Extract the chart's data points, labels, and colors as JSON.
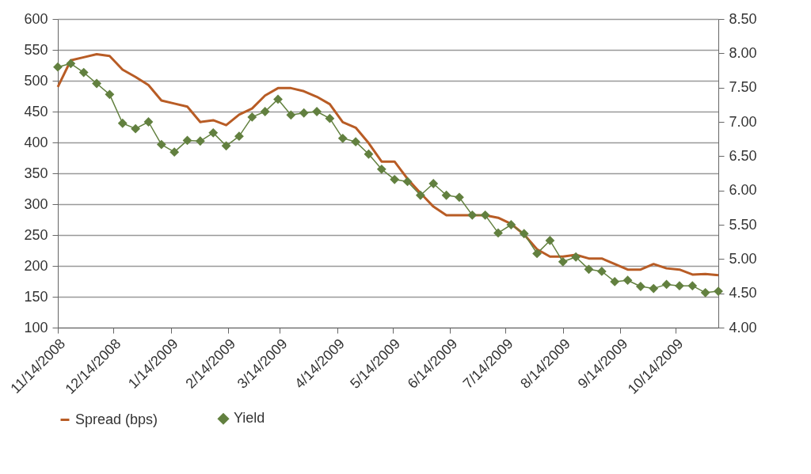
{
  "chart_data": {
    "type": "line",
    "x": [
      "2008-11-14",
      "2008-11-21",
      "2008-11-28",
      "2008-12-05",
      "2008-12-12",
      "2008-12-19",
      "2008-12-26",
      "2009-01-02",
      "2009-01-09",
      "2009-01-16",
      "2009-01-23",
      "2009-01-30",
      "2009-02-06",
      "2009-02-13",
      "2009-02-20",
      "2009-02-27",
      "2009-03-06",
      "2009-03-13",
      "2009-03-20",
      "2009-03-27",
      "2009-04-03",
      "2009-04-10",
      "2009-04-17",
      "2009-04-24",
      "2009-05-01",
      "2009-05-08",
      "2009-05-15",
      "2009-05-22",
      "2009-05-29",
      "2009-06-05",
      "2009-06-12",
      "2009-06-19",
      "2009-06-26",
      "2009-07-03",
      "2009-07-10",
      "2009-07-17",
      "2009-07-24",
      "2009-07-31",
      "2009-08-07",
      "2009-08-14",
      "2009-08-21",
      "2009-08-28",
      "2009-09-04",
      "2009-09-11",
      "2009-09-18",
      "2009-09-25",
      "2009-10-02",
      "2009-10-09",
      "2009-10-16",
      "2009-10-23",
      "2009-10-30",
      "2009-11-06"
    ],
    "series": [
      {
        "name": "Spread (bps)",
        "color": "#b85c25",
        "marker": "none",
        "values": [
          490,
          533,
          538,
          543,
          540,
          518,
          506,
          493,
          468,
          463,
          458,
          433,
          436,
          428,
          445,
          455,
          476,
          488,
          488,
          483,
          474,
          462,
          433,
          424,
          399,
          369,
          369,
          341,
          318,
          296,
          282,
          282,
          282,
          282,
          278,
          268,
          251,
          227,
          215,
          215,
          218,
          212,
          212,
          203,
          194,
          194,
          203,
          196,
          194,
          186,
          187,
          185
        ]
      },
      {
        "name": "Yield",
        "color": "#62803f",
        "marker": "diamond",
        "axis": "y2",
        "values": [
          7.8,
          7.85,
          7.72,
          7.56,
          7.4,
          6.98,
          6.9,
          7.0,
          6.67,
          6.56,
          6.73,
          6.72,
          6.84,
          6.65,
          6.79,
          7.07,
          7.15,
          7.33,
          7.1,
          7.13,
          7.15,
          7.05,
          6.76,
          6.71,
          6.53,
          6.31,
          6.16,
          6.13,
          5.93,
          6.1,
          5.93,
          5.9,
          5.64,
          5.64,
          5.38,
          5.5,
          5.37,
          5.08,
          5.27,
          4.96,
          5.03,
          4.85,
          4.82,
          4.67,
          4.69,
          4.6,
          4.57,
          4.63,
          4.61,
          4.61,
          4.51,
          4.53
        ]
      }
    ],
    "xlim": [
      "2008-11-14",
      "2009-11-06"
    ],
    "xticks": [
      {
        "value": "2008-11-14",
        "label": "11/14/2008"
      },
      {
        "value": "2008-12-14",
        "label": "12/14/2008"
      },
      {
        "value": "2009-01-14",
        "label": "1/14/2009"
      },
      {
        "value": "2009-02-14",
        "label": "2/14/2009"
      },
      {
        "value": "2009-03-14",
        "label": "3/14/2009"
      },
      {
        "value": "2009-04-14",
        "label": "4/14/2009"
      },
      {
        "value": "2009-05-14",
        "label": "5/14/2009"
      },
      {
        "value": "2009-06-14",
        "label": "6/14/2009"
      },
      {
        "value": "2009-07-14",
        "label": "7/14/2009"
      },
      {
        "value": "2009-08-14",
        "label": "8/14/2009"
      },
      {
        "value": "2009-09-14",
        "label": "9/14/2009"
      },
      {
        "value": "2009-10-14",
        "label": "10/14/2009"
      }
    ],
    "ylim": [
      100,
      600
    ],
    "yticks": [
      100,
      150,
      200,
      250,
      300,
      350,
      400,
      450,
      500,
      550,
      600
    ],
    "y2lim": [
      4,
      8.5
    ],
    "y2ticks": [
      {
        "value": 4,
        "label": "4.00"
      },
      {
        "value": 4.5,
        "label": "4.50"
      },
      {
        "value": 5,
        "label": "5.00"
      },
      {
        "value": 5.5,
        "label": "5.50"
      },
      {
        "value": 6,
        "label": "6.00"
      },
      {
        "value": 6.5,
        "label": "6.50"
      },
      {
        "value": 7,
        "label": "7.00"
      },
      {
        "value": 7.5,
        "label": "7.50"
      },
      {
        "value": 8,
        "label": "8.00"
      },
      {
        "value": 8.5,
        "label": "8.50"
      }
    ],
    "grid": "y",
    "legend": "bottom",
    "line_style": "solid"
  }
}
